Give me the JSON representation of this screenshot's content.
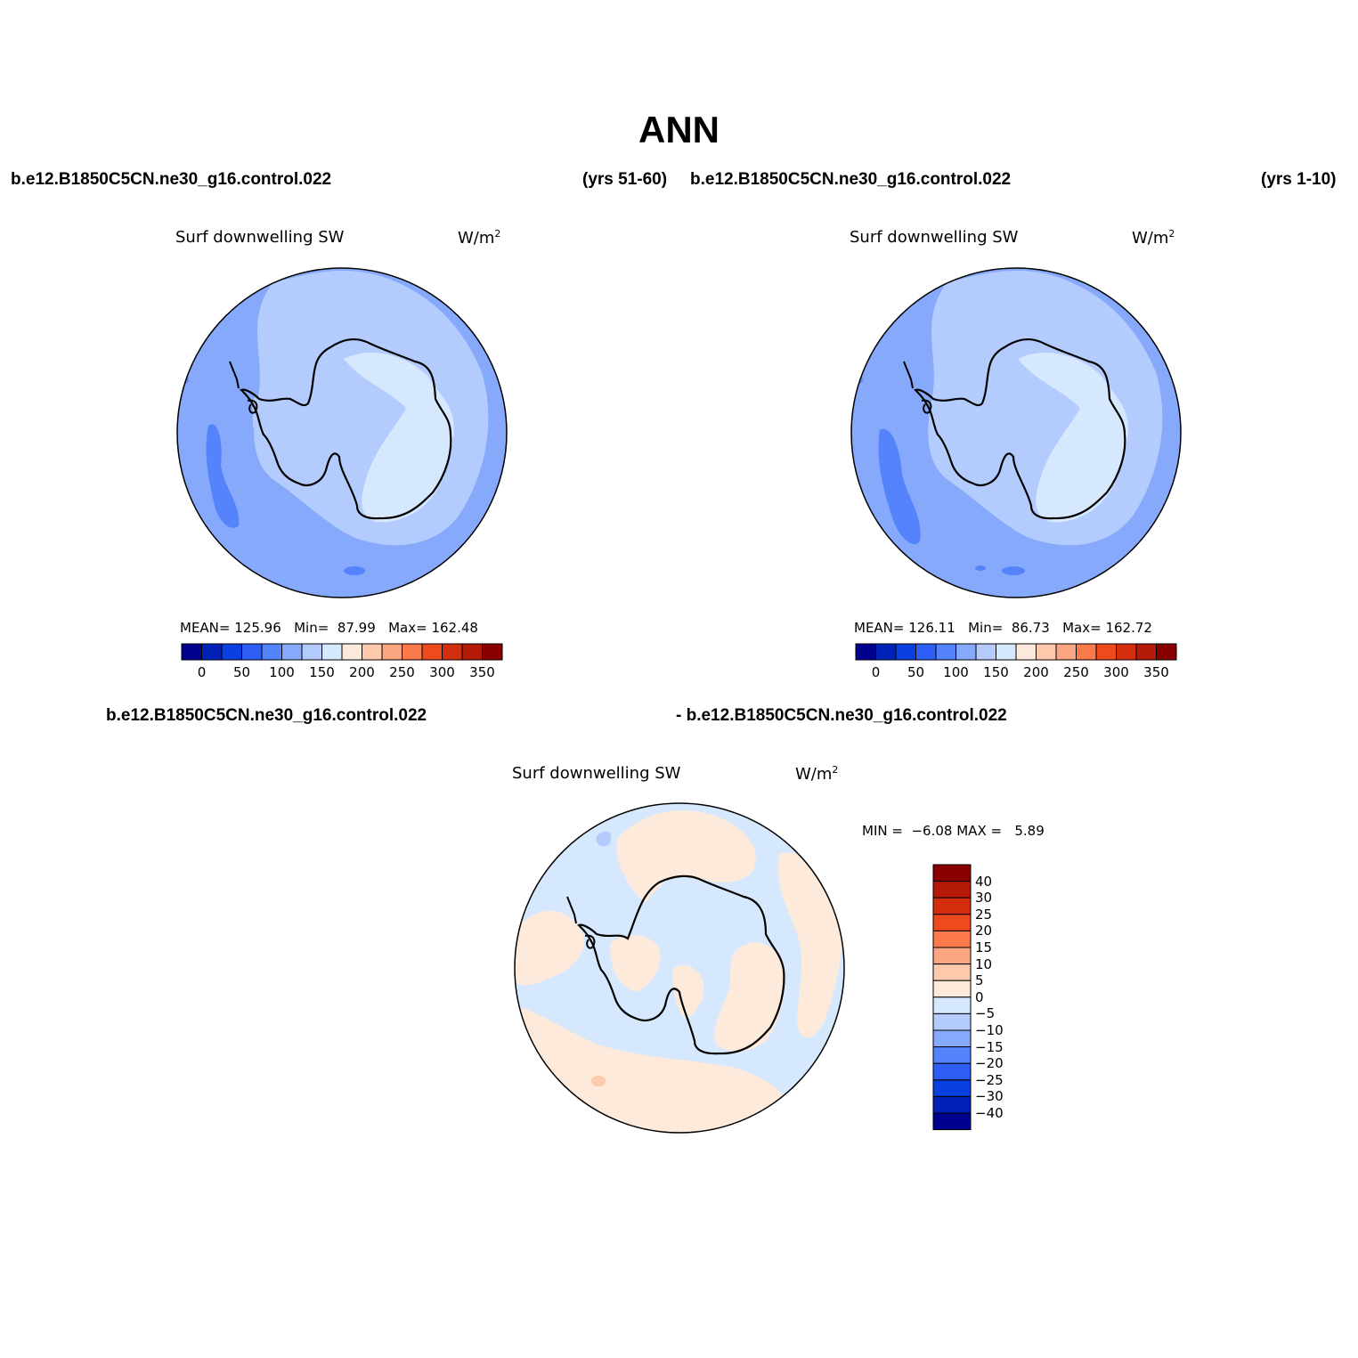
{
  "title": "ANN",
  "panels": [
    {
      "case": "b.e12.B1850C5CN.ne30_g16.control.022",
      "years": "(yrs 51-60)",
      "variable": "Surf downwelling SW",
      "units": "W/m",
      "units_sup": "2",
      "stats": {
        "mean_label": "MEAN=",
        "mean": "125.96",
        "min_label": "Min=",
        "min": "87.99",
        "max_label": "Max=",
        "max": "162.48"
      }
    },
    {
      "case": "b.e12.B1850C5CN.ne30_g16.control.022",
      "years": "(yrs 1-10)",
      "variable": "Surf downwelling SW",
      "units": "W/m",
      "units_sup": "2",
      "stats": {
        "mean_label": "MEAN=",
        "mean": "126.11",
        "min_label": "Min=",
        "min": "86.73",
        "max_label": "Max=",
        "max": "162.72"
      }
    }
  ],
  "diff_panel": {
    "case_left": "b.e12.B1850C5CN.ne30_g16.control.022",
    "case_right": "- b.e12.B1850C5CN.ne30_g16.control.022",
    "variable": "Surf downwelling SW",
    "units": "W/m",
    "units_sup": "2",
    "min_label": "MIN =",
    "min": "−6.08",
    "max_label": "MAX =",
    "max": "5.89"
  },
  "colorbar_abs": {
    "colors": [
      "#00008f",
      "#0022b8",
      "#0a3fe0",
      "#2e5ef5",
      "#5583fb",
      "#87a9fc",
      "#b4ccfd",
      "#d6e8fe",
      "#fdeadb",
      "#fdcaad",
      "#fca583",
      "#fb7a4c",
      "#ee4a1d",
      "#d32f0f",
      "#b41a07",
      "#880000"
    ],
    "labels": [
      "0",
      "50",
      "100",
      "150",
      "200",
      "250",
      "300",
      "350"
    ]
  },
  "colorbar_diff": {
    "colors": [
      "#880000",
      "#b41a07",
      "#d32f0f",
      "#ee4a1d",
      "#fb7a4c",
      "#fca583",
      "#fdcaad",
      "#fdeadb",
      "#d6e8fe",
      "#b4ccfd",
      "#87a9fc",
      "#5583fb",
      "#2e5ef5",
      "#0a3fe0",
      "#0022b8",
      "#00008f"
    ],
    "labels": [
      "40",
      "30",
      "25",
      "20",
      "15",
      "10",
      "5",
      "0",
      "−5",
      "−10",
      "−15",
      "−20",
      "−25",
      "−30",
      "−40"
    ]
  },
  "map_colors": {
    "fill_90_120": "#87a9fc",
    "fill_80_90": "#5583fb",
    "fill_120_150": "#b4ccfd",
    "fill_150_200": "#d6e8fe",
    "diff_neg": "#d6e8fe",
    "diff_pos": "#fdeadb",
    "diff_pos_strong": "#fdcaad",
    "diff_neg_strong": "#b4ccfd"
  }
}
